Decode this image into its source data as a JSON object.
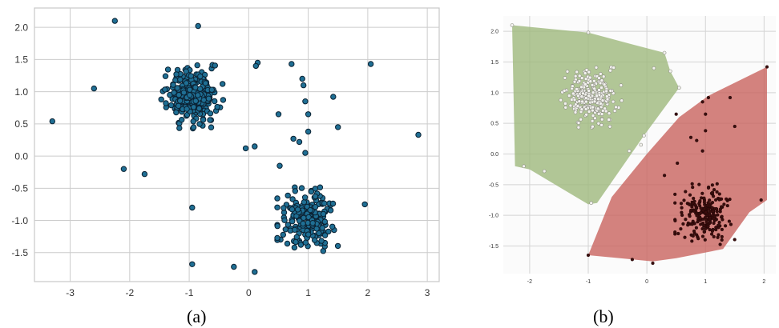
{
  "captions": {
    "a": "(a)",
    "b": "(b)"
  },
  "chart_data": [
    {
      "type": "scatter",
      "panel": "a",
      "title": "",
      "xlabel": "",
      "ylabel": "",
      "xlim": [
        -3.6,
        3.2
      ],
      "ylim": [
        -1.95,
        2.3
      ],
      "xticks": [
        -3,
        -2,
        -1,
        0,
        1,
        2,
        3
      ],
      "yticks": [
        -1.5,
        -1.0,
        -0.5,
        0.0,
        0.5,
        1.0,
        1.5,
        2.0
      ],
      "ytick_labels": [
        "-1.5",
        "-1.0",
        "-0.5",
        "0.0",
        "0.5",
        "1.0",
        "1.5",
        "2.0"
      ],
      "grid": true,
      "colors": {
        "point_fill": "#1f6f94",
        "point_edge": "#0b2233",
        "grid": "#cccccc",
        "frame": "#c8c8c8"
      },
      "clusters": [
        {
          "center": [
            -0.95,
            0.95
          ],
          "count": 260,
          "spread": [
            0.2,
            0.2
          ]
        },
        {
          "center": [
            1.0,
            -0.98
          ],
          "count": 230,
          "spread": [
            0.2,
            0.19
          ]
        }
      ],
      "outliers": [
        [
          -3.3,
          0.54
        ],
        [
          -2.6,
          1.05
        ],
        [
          -2.25,
          2.1
        ],
        [
          -2.1,
          -0.2
        ],
        [
          -1.75,
          -0.28
        ],
        [
          -0.85,
          2.02
        ],
        [
          -0.95,
          -0.8
        ],
        [
          -0.95,
          -1.68
        ],
        [
          -0.25,
          -1.72
        ],
        [
          0.1,
          -1.8
        ],
        [
          0.15,
          1.45
        ],
        [
          0.12,
          1.4
        ],
        [
          0.5,
          0.65
        ],
        [
          0.72,
          1.43
        ],
        [
          0.75,
          0.27
        ],
        [
          0.85,
          0.22
        ],
        [
          0.9,
          1.2
        ],
        [
          0.92,
          1.1
        ],
        [
          0.95,
          0.85
        ],
        [
          1.0,
          0.65
        ],
        [
          1.0,
          0.38
        ],
        [
          1.42,
          0.92
        ],
        [
          1.5,
          0.45
        ],
        [
          2.05,
          1.43
        ],
        [
          1.95,
          -0.75
        ],
        [
          2.85,
          0.33
        ],
        [
          0.1,
          0.15
        ],
        [
          -0.05,
          0.12
        ],
        [
          0.52,
          -0.15
        ],
        [
          0.95,
          0.05
        ]
      ]
    },
    {
      "type": "scatter",
      "panel": "b",
      "title": "",
      "xlabel": "",
      "ylabel": "",
      "xlim": [
        -2.45,
        2.2
      ],
      "ylim": [
        -1.95,
        2.25
      ],
      "xticks": [
        -2,
        -1,
        0,
        1,
        2
      ],
      "yticks": [
        -1.5,
        -1.0,
        -0.5,
        0.0,
        0.5,
        1.0,
        1.5,
        2.0
      ],
      "ytick_labels": [
        "-1.5",
        "-1.0",
        "-0.5",
        "0.0",
        "0.5",
        "1.0",
        "1.5",
        "2.0"
      ],
      "grid": true,
      "colors": {
        "hull_a": "#9cb77a",
        "hull_b": "#c8605b",
        "points_a_fill": "#f2f2ee",
        "points_a_edge": "#8a8a80",
        "points_b": "#3a0d0d",
        "grid": "#d4d4d4"
      },
      "hulls": [
        {
          "name": "",
          "points": [
            [
              -2.3,
              2.1
            ],
            [
              -1.0,
              1.98
            ],
            [
              -0.3,
              1.8
            ],
            [
              0.3,
              1.65
            ],
            [
              0.4,
              1.35
            ],
            [
              0.55,
              1.08
            ],
            [
              -0.05,
              0.3
            ],
            [
              -0.85,
              -0.8
            ],
            [
              -1.0,
              -0.82
            ],
            [
              -2.0,
              -0.25
            ],
            [
              -2.25,
              -0.2
            ]
          ]
        },
        {
          "name": "",
          "points": [
            [
              -1.0,
              -1.65
            ],
            [
              0.1,
              -1.75
            ],
            [
              0.5,
              -1.7
            ],
            [
              1.3,
              -1.55
            ],
            [
              1.75,
              -0.95
            ],
            [
              2.05,
              -0.75
            ],
            [
              2.05,
              1.42
            ],
            [
              1.05,
              0.95
            ],
            [
              0.55,
              0.6
            ],
            [
              0.0,
              0.0
            ],
            [
              -0.6,
              -0.7
            ]
          ]
        }
      ],
      "clusters": [
        {
          "name": "",
          "center": [
            -0.95,
            0.95
          ],
          "count": 260,
          "spread": [
            0.2,
            0.2
          ]
        },
        {
          "name": "",
          "center": [
            1.0,
            -0.98
          ],
          "count": 230,
          "spread": [
            0.2,
            0.19
          ]
        }
      ],
      "outliers_a": [
        [
          -2.3,
          2.1
        ],
        [
          -2.1,
          -0.2
        ],
        [
          -1.75,
          -0.28
        ],
        [
          -1.0,
          1.98
        ],
        [
          -0.95,
          -0.8
        ],
        [
          -0.3,
          0.05
        ],
        [
          0.3,
          1.65
        ],
        [
          0.4,
          1.35
        ],
        [
          0.55,
          1.08
        ],
        [
          0.12,
          1.4
        ],
        [
          -0.05,
          0.3
        ],
        [
          -0.1,
          0.15
        ]
      ],
      "outliers_b": [
        [
          -1.0,
          -1.65
        ],
        [
          -0.25,
          -1.72
        ],
        [
          0.1,
          -1.78
        ],
        [
          0.75,
          0.27
        ],
        [
          0.85,
          0.22
        ],
        [
          0.95,
          0.85
        ],
        [
          1.05,
          0.92
        ],
        [
          1.42,
          0.92
        ],
        [
          1.5,
          0.45
        ],
        [
          2.05,
          1.42
        ],
        [
          1.95,
          -0.75
        ],
        [
          0.5,
          0.65
        ],
        [
          1.0,
          0.38
        ],
        [
          1.0,
          0.65
        ],
        [
          0.52,
          -0.15
        ],
        [
          0.95,
          0.05
        ],
        [
          0.3,
          -0.35
        ]
      ]
    }
  ]
}
